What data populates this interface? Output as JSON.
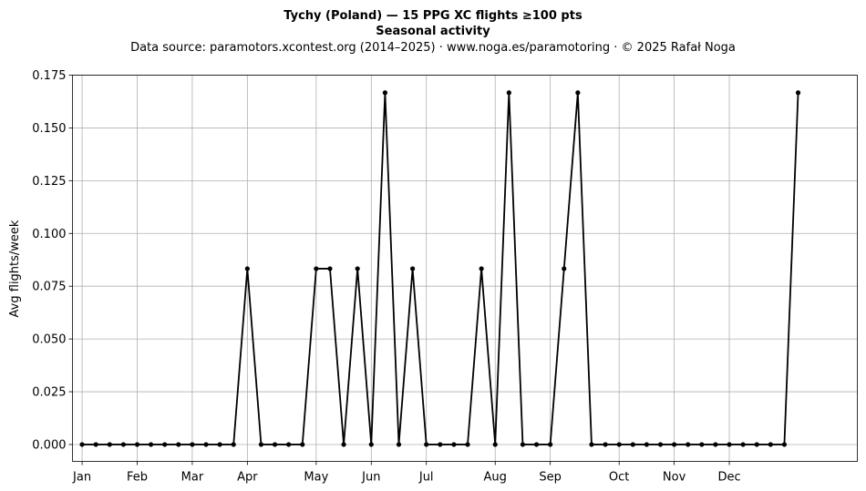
{
  "chart_data": {
    "type": "line",
    "title": "Tychy (Poland)  —  15 PPG XC flights ≥100 pts",
    "subtitle": "Seasonal activity",
    "source_note": "Data source: paramotors.xcontest.org (2014–2025)  ·  www.noga.es/paramotoring  ·  © 2025 Rafał Noga",
    "xlabel": "",
    "ylabel": "Avg flights/week",
    "ylim": [
      -0.008,
      0.175
    ],
    "xlim": [
      0.3,
      57.3
    ],
    "grid": true,
    "x_ticks": [
      {
        "label": "Jan",
        "x": 1
      },
      {
        "label": "Feb",
        "x": 5
      },
      {
        "label": "Mar",
        "x": 9
      },
      {
        "label": "Apr",
        "x": 13
      },
      {
        "label": "May",
        "x": 18
      },
      {
        "label": "Jun",
        "x": 22
      },
      {
        "label": "Jul",
        "x": 26
      },
      {
        "label": "Aug",
        "x": 31
      },
      {
        "label": "Sep",
        "x": 35
      },
      {
        "label": "Oct",
        "x": 40
      },
      {
        "label": "Nov",
        "x": 44
      },
      {
        "label": "Dec",
        "x": 48
      }
    ],
    "y_ticks": [
      "0.000",
      "0.025",
      "0.050",
      "0.075",
      "0.100",
      "0.125",
      "0.150",
      "0.175"
    ],
    "series": [
      {
        "color": "#000000",
        "x": [
          1,
          2,
          3,
          4,
          5,
          6,
          7,
          8,
          9,
          10,
          11,
          12,
          13,
          14,
          15,
          16,
          17,
          18,
          19,
          20,
          21,
          22,
          23,
          24,
          25,
          26,
          27,
          28,
          29,
          30,
          31,
          32,
          33,
          34,
          35,
          36,
          37,
          38,
          39,
          40,
          41,
          42,
          43,
          44,
          45,
          46,
          47,
          48,
          49,
          50,
          51,
          52,
          53
        ],
        "values": [
          0,
          0,
          0,
          0,
          0,
          0,
          0,
          0,
          0,
          0,
          0,
          0,
          0.0833,
          0,
          0,
          0,
          0,
          0.0833,
          0.0833,
          0,
          0.0833,
          0,
          0.1667,
          0,
          0.0833,
          0,
          0,
          0,
          0,
          0.0833,
          0,
          0.1667,
          0,
          0,
          0,
          0.0833,
          0.1667,
          0,
          0,
          0,
          0,
          0,
          0,
          0,
          0,
          0,
          0,
          0,
          0,
          0,
          0,
          0,
          0.1667
        ]
      }
    ]
  }
}
